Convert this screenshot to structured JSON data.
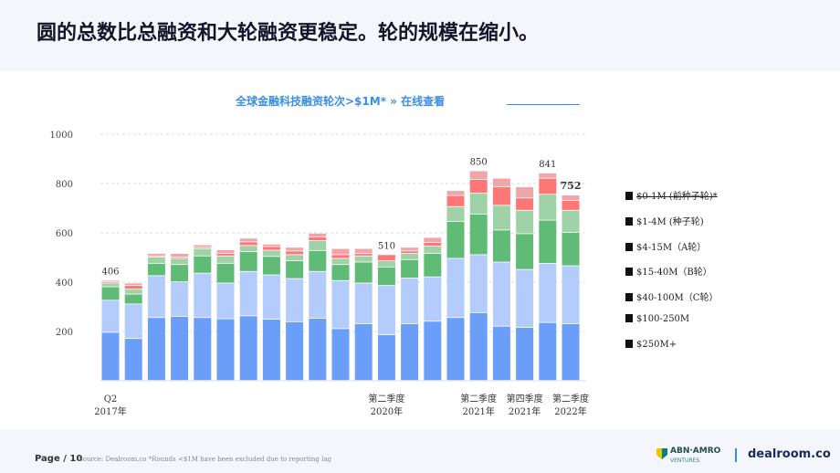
{
  "headline": "圆的总数比总融资和大轮融资更稳定。轮的规模在缩小。",
  "chart_title": "全球金融科技融资轮次>$1M* » 在线查看",
  "footer": {
    "page": "Page / 10",
    "source": "Source: Dealroom.co *Rounds <$1M have been excluded due to reporting lag",
    "partner_name": "ABN·AMRO",
    "partner_sub": "VENTURES",
    "brand": "dealroom.co"
  },
  "colors": {
    "s0_1": "#ecebe6",
    "s1_4": "#9fd2a6",
    "s4_15": "#5fbb75",
    "s15_40": "#b3ccfb",
    "s40_100": "#6a9ef8",
    "s100_250": "#ff7676",
    "s250_plus": "#f2a5a8",
    "title": "#3a8ee6"
  },
  "legend": [
    {
      "label": "$0-1M (前种子轮)*",
      "strike": true
    },
    {
      "label": "$1-4M (种子轮)",
      "strike": false
    },
    {
      "label": "$4-15M（A轮）",
      "strike": false
    },
    {
      "label": "$15-40M（B轮）",
      "strike": false
    },
    {
      "label": "$40-100M（C轮）",
      "strike": false
    },
    {
      "label": "$100-250M",
      "strike": false
    },
    {
      "label": "$250M+",
      "strike": false
    }
  ],
  "chart_data": {
    "type": "bar",
    "stacked": true,
    "ylim": [
      0,
      1000
    ],
    "yticks": [
      200,
      400,
      600,
      800,
      1000
    ],
    "grid": "horizontal dashed",
    "x_tick_labels": [
      {
        "index": 0,
        "lines": [
          "Q2",
          "2017年"
        ]
      },
      {
        "index": 12,
        "lines": [
          "第二季度",
          "2020年"
        ]
      },
      {
        "index": 16,
        "lines": [
          "第二季度",
          "2021年"
        ]
      },
      {
        "index": 18,
        "lines": [
          "第四季度",
          "2021年"
        ]
      },
      {
        "index": 20,
        "lines": [
          "第二季度",
          "2022年"
        ]
      }
    ],
    "annotations": [
      {
        "index": 0,
        "text": "406",
        "bold": false
      },
      {
        "index": 12,
        "text": "510",
        "bold": false
      },
      {
        "index": 16,
        "text": "850",
        "bold": false
      },
      {
        "index": 19,
        "text": "841",
        "bold": false
      },
      {
        "index": 20,
        "text": "752",
        "bold": true
      }
    ],
    "series": [
      {
        "name": "$40-100M（C轮）",
        "color_key": "s40_100",
        "values": [
          195,
          170,
          255,
          260,
          255,
          250,
          262,
          248,
          238,
          252,
          210,
          230,
          185,
          230,
          240,
          255,
          275,
          220,
          215,
          235,
          230
        ]
      },
      {
        "name": "$15-40M（B轮）",
        "color_key": "s15_40",
        "values": [
          130,
          140,
          170,
          140,
          180,
          145,
          180,
          180,
          175,
          190,
          195,
          165,
          200,
          185,
          180,
          240,
          235,
          260,
          235,
          240,
          235
        ]
      },
      {
        "name": "$4-15M（A轮）",
        "color_key": "s4_15",
        "values": [
          55,
          40,
          50,
          70,
          70,
          80,
          80,
          75,
          72,
          85,
          65,
          85,
          75,
          75,
          95,
          150,
          165,
          130,
          145,
          175,
          135
        ]
      },
      {
        "name": "$1-4M (种子轮)",
        "color_key": "s1_4",
        "values": [
          15,
          20,
          25,
          25,
          30,
          30,
          25,
          25,
          25,
          40,
          25,
          25,
          25,
          25,
          30,
          60,
          85,
          100,
          95,
          105,
          90
        ]
      },
      {
        "name": "$100-250M",
        "color_key": "s100_250",
        "values": [
          5,
          15,
          5,
          5,
          5,
          10,
          15,
          15,
          15,
          15,
          15,
          10,
          25,
          10,
          15,
          45,
          55,
          75,
          50,
          65,
          40
        ]
      },
      {
        "name": "$250M+",
        "color_key": "s250_plus",
        "values": [
          6,
          10,
          10,
          15,
          10,
          15,
          15,
          10,
          15,
          15,
          25,
          20,
          0,
          15,
          20,
          20,
          35,
          35,
          45,
          21,
          22
        ]
      }
    ]
  }
}
